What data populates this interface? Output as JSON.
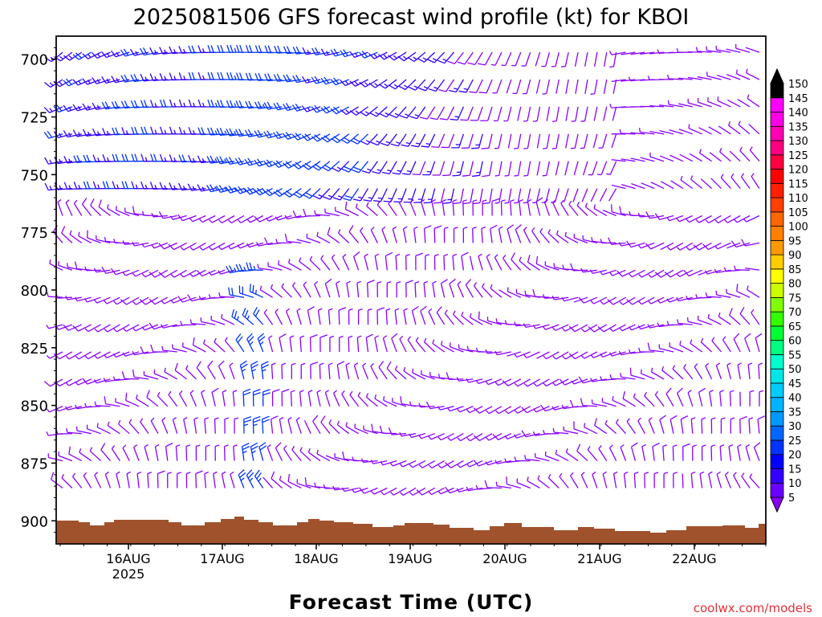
{
  "title": "2025081506 GFS forecast wind profile (kt) for KBOI",
  "xlabel": "Forecast Time (UTC)",
  "credit": "coolwx.com/models",
  "chart_data": {
    "type": "wind-barb time-height profile",
    "title": "2025081506 GFS forecast wind profile (kt) for KBOI",
    "xlabel": "Forecast Time (UTC)",
    "ylabel": "",
    "units": "kt",
    "y_axis": {
      "ticks": [
        700,
        725,
        750,
        775,
        800,
        825,
        850,
        875,
        900
      ],
      "range": [
        690,
        910
      ],
      "inverted": true
    },
    "x_axis": {
      "range_days": [
        "15AUG 06Z",
        "22AUG 18Z"
      ],
      "tick_labels": [
        {
          "date": "16AUG",
          "year": "2025"
        },
        {
          "date": "17AUG",
          "year": ""
        },
        {
          "date": "18AUG",
          "year": ""
        },
        {
          "date": "19AUG",
          "year": ""
        },
        {
          "date": "20AUG",
          "year": ""
        },
        {
          "date": "21AUG",
          "year": ""
        },
        {
          "date": "22AUG",
          "year": ""
        }
      ]
    },
    "colorbar": {
      "levels": [
        5,
        10,
        15,
        20,
        25,
        30,
        35,
        40,
        45,
        50,
        55,
        60,
        65,
        70,
        75,
        80,
        85,
        90,
        95,
        100,
        105,
        110,
        115,
        120,
        125,
        130,
        135,
        140,
        145,
        150
      ],
      "labels": [
        "5",
        "10",
        "15",
        "20",
        "25",
        "30",
        "35",
        "40",
        "45",
        "50",
        "55",
        "60",
        "65",
        "70",
        "75",
        "80",
        "85",
        "90",
        "95",
        "100",
        "105",
        "110",
        "115",
        "120",
        "125",
        "130",
        "135",
        "140",
        "145",
        "150"
      ],
      "colors": [
        "#8a00ff",
        "#6a00ff",
        "#3300ff",
        "#0000ff",
        "#0033ff",
        "#0066ff",
        "#0099ff",
        "#00b3ff",
        "#00ccff",
        "#00e6e6",
        "#00ffcc",
        "#00ff80",
        "#00ff33",
        "#33ff00",
        "#80ff00",
        "#ccff00",
        "#ffff00",
        "#ffcc00",
        "#ff9900",
        "#ff8000",
        "#ff6600",
        "#ff4000",
        "#ff2000",
        "#ff0000",
        "#ff0040",
        "#ff0080",
        "#ff00b3",
        "#ff00e6",
        "#ff00ff",
        "#000000"
      ]
    },
    "terrain_color": "#a0522d",
    "barb_color_light": "#8a00ff",
    "barb_color_moderate": "#0033ff",
    "wind_rows": [
      {
        "level": 700,
        "note": "mostly W-SW 10-20 kt; stronger blue barbs early and 17-19AUG"
      },
      {
        "level": 750,
        "note": "SW 10-15 kt, turning NW late"
      },
      {
        "level": 800,
        "note": "light and variable 5-10 kt"
      },
      {
        "level": 850,
        "note": "light 5-10 kt, blue (25-30 kt) near 17AUG 06Z"
      },
      {
        "level": 900,
        "note": "light 5 kt near surface"
      }
    ]
  }
}
